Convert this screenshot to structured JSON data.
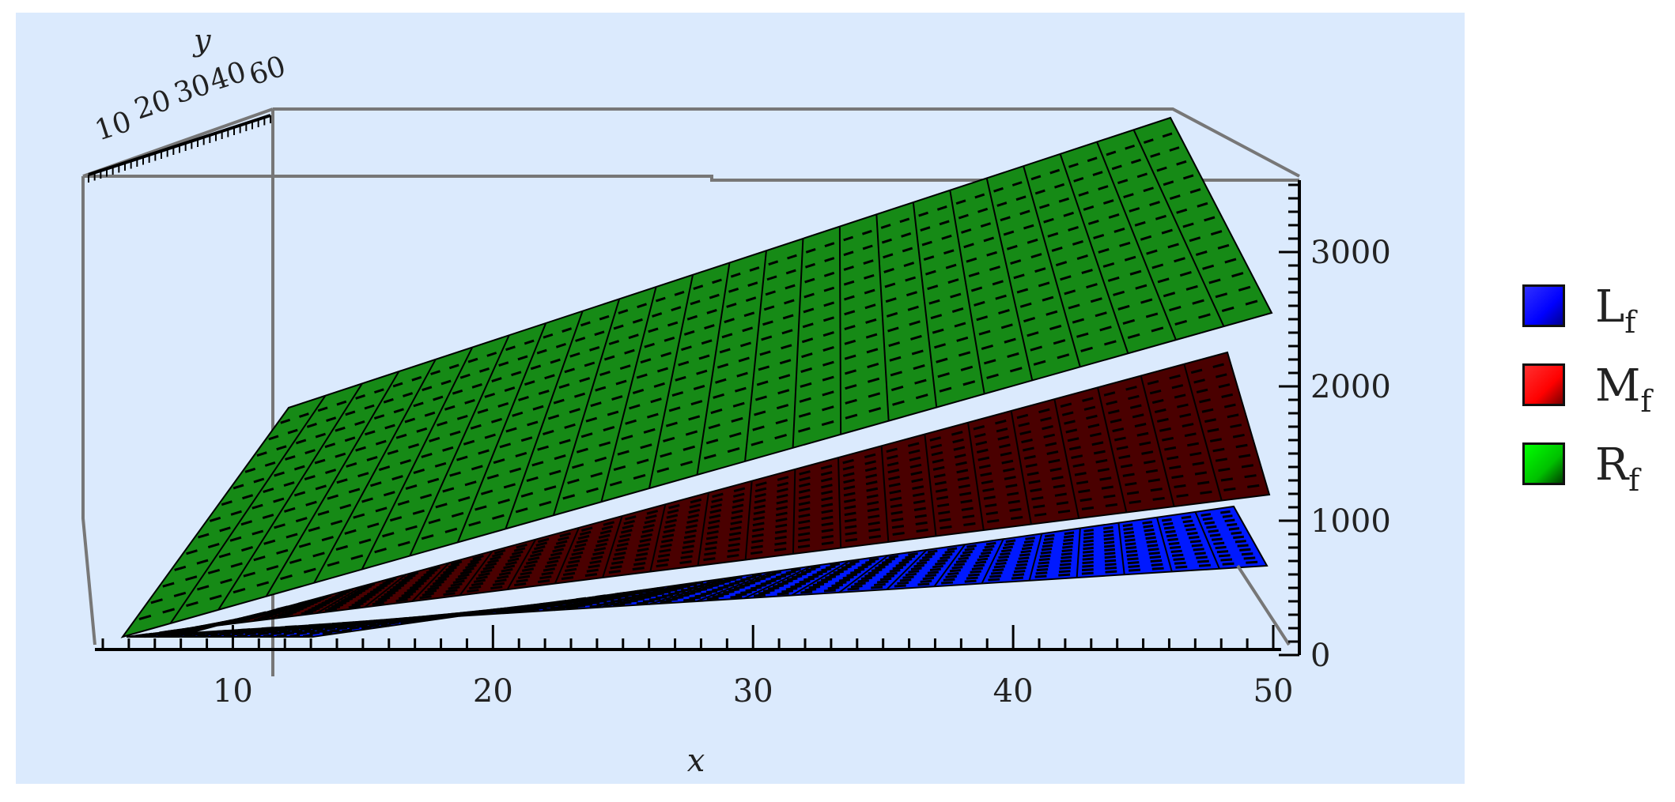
{
  "chart_data": {
    "type": "surface3d",
    "x_axis": {
      "label": "x",
      "ticks": [
        "10",
        "20",
        "30",
        "40",
        "50"
      ],
      "range": [
        5,
        50
      ]
    },
    "y_axis": {
      "label": "y",
      "ticks": [
        "10",
        "20",
        "30",
        "40",
        "60"
      ]
    },
    "z_axis": {
      "ticks": [
        "0",
        "1000",
        "2000",
        "3000"
      ],
      "range": [
        0,
        3500
      ]
    },
    "series": [
      {
        "name": "L",
        "subscript": "f",
        "color": "#0000ff",
        "x": [
          5,
          50
        ],
        "z_front": [
          0,
          800
        ]
      },
      {
        "name": "M",
        "subscript": "f",
        "color": "#ff0000",
        "x": [
          5,
          50
        ],
        "z_front": [
          0,
          1400
        ]
      },
      {
        "name": "R",
        "subscript": "f",
        "color": "#00c000",
        "x": [
          5,
          50
        ],
        "z_front": [
          0,
          2950
        ]
      }
    ],
    "legend_position": "right"
  },
  "colors": {
    "panel_background": "#dbeafd",
    "L_surface": "#0019ff",
    "M_surface": "#4a0000",
    "R_surface": "#168a16"
  }
}
